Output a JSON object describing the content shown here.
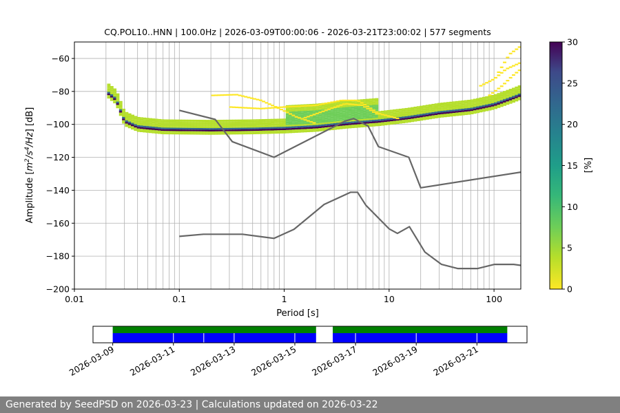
{
  "chart_data": {
    "type": "heatmap",
    "title": "CQ.POL10..HNN | 100.0Hz | 2026-03-09T00:00:06 - 2026-03-21T23:00:02 | 577 segments",
    "xlabel": "Period [s]",
    "ylabel_parts": [
      "Amplitude [",
      "m",
      "2",
      "/s",
      "4",
      "/Hz",
      "] [dB]"
    ],
    "x_scale": "log",
    "xlim": [
      0.01,
      180
    ],
    "ylim": [
      -200,
      -50
    ],
    "x_ticks": [
      0.01,
      0.1,
      1,
      10,
      100
    ],
    "x_tick_labels": [
      "0.01",
      "0.1",
      "1",
      "10",
      "100"
    ],
    "y_ticks": [
      -200,
      -180,
      -160,
      -140,
      -120,
      -100,
      -80,
      -60
    ],
    "y_tick_labels": [
      "−200",
      "−180",
      "−160",
      "−140",
      "−120",
      "−100",
      "−80",
      "−60"
    ],
    "grid": true,
    "colorbar": {
      "label": "[%]",
      "range": [
        0,
        30
      ],
      "ticks": [
        0,
        5,
        10,
        15,
        20,
        25,
        30
      ],
      "tick_labels": [
        "0",
        "5",
        "10",
        "15",
        "20",
        "25",
        "30"
      ],
      "colormap": "viridis_r"
    },
    "series": [
      {
        "role": "noise-model-high",
        "color": "#666666",
        "points": [
          [
            0.1,
            -91.5
          ],
          [
            0.22,
            -97
          ],
          [
            0.32,
            -110.5
          ],
          [
            0.8,
            -120
          ],
          [
            3.8,
            -98
          ],
          [
            4.6,
            -96.5
          ],
          [
            6.3,
            -101
          ],
          [
            7.9,
            -113.5
          ],
          [
            15.4,
            -120
          ],
          [
            20,
            -138.5
          ],
          [
            180,
            -129
          ]
        ]
      },
      {
        "role": "noise-model-low",
        "color": "#666666",
        "points": [
          [
            0.1,
            -168
          ],
          [
            0.17,
            -166.7
          ],
          [
            0.4,
            -166.7
          ],
          [
            0.8,
            -169.2
          ],
          [
            1.24,
            -163.7
          ],
          [
            2.4,
            -148.6
          ],
          [
            4.3,
            -141.2
          ],
          [
            5.0,
            -141.2
          ],
          [
            6.0,
            -149.1
          ],
          [
            10,
            -163.4
          ],
          [
            12,
            -166.2
          ],
          [
            15.6,
            -162.1
          ],
          [
            21.9,
            -177.5
          ],
          [
            31.6,
            -185
          ],
          [
            45,
            -187.5
          ],
          [
            70,
            -187.5
          ],
          [
            101,
            -185
          ],
          [
            154,
            -185
          ],
          [
            180,
            -185.6
          ]
        ]
      }
    ],
    "mode_curve": [
      [
        0.02,
        -80
      ],
      [
        0.025,
        -85
      ],
      [
        0.03,
        -98
      ],
      [
        0.04,
        -101.5
      ],
      [
        0.07,
        -103
      ],
      [
        0.2,
        -103.3
      ],
      [
        0.5,
        -103
      ],
      [
        1,
        -102.5
      ],
      [
        2,
        -101.5
      ],
      [
        4,
        -99.5
      ],
      [
        8,
        -98
      ],
      [
        15,
        -96
      ],
      [
        30,
        -93
      ],
      [
        60,
        -91
      ],
      [
        100,
        -88
      ],
      [
        150,
        -84
      ],
      [
        180,
        -82
      ]
    ],
    "outlier_curves": [
      [
        [
          0.2,
          -82
        ],
        [
          0.35,
          -81.5
        ],
        [
          0.6,
          -85
        ],
        [
          0.9,
          -90
        ],
        [
          1.3,
          -95
        ],
        [
          2,
          -99
        ]
      ],
      [
        [
          0.3,
          -89
        ],
        [
          0.6,
          -90
        ],
        [
          1,
          -89
        ],
        [
          2,
          -88
        ],
        [
          3.5,
          -85
        ],
        [
          5,
          -85
        ],
        [
          8,
          -93
        ],
        [
          12,
          -96
        ]
      ],
      [
        [
          1.5,
          -96
        ],
        [
          2.5,
          -91
        ],
        [
          3.8,
          -87
        ],
        [
          5.5,
          -88
        ],
        [
          8,
          -94
        ]
      ],
      [
        [
          70,
          -77
        ],
        [
          100,
          -72
        ],
        [
          130,
          -66
        ],
        [
          180,
          -62
        ]
      ],
      [
        [
          90,
          -82
        ],
        [
          120,
          -76
        ],
        [
          150,
          -70
        ],
        [
          180,
          -66
        ]
      ],
      [
        [
          110,
          -68
        ],
        [
          140,
          -57
        ],
        [
          180,
          -52
        ]
      ]
    ],
    "availability": {
      "x_tick_labels": [
        "2026-03-09",
        "2026-03-11",
        "2026-03-13",
        "2026-03-15",
        "2026-03-17",
        "2026-03-19",
        "2026-03-21"
      ],
      "x_tick_days": [
        0,
        2,
        4,
        6,
        8,
        10,
        12
      ],
      "range_days": [
        -0.65,
        13.65
      ],
      "segments_days": [
        [
          0,
          6.7
        ],
        [
          7.25,
          13.0
        ]
      ],
      "gap_marks_days": [
        2,
        3,
        4,
        6,
        8.0,
        10,
        12
      ],
      "colors": {
        "data": "#0000ff",
        "gaps_flag": "#008000"
      }
    }
  },
  "footer": "Generated by SeedPSD on 2026-03-23 | Calculations updated on 2026-03-22"
}
